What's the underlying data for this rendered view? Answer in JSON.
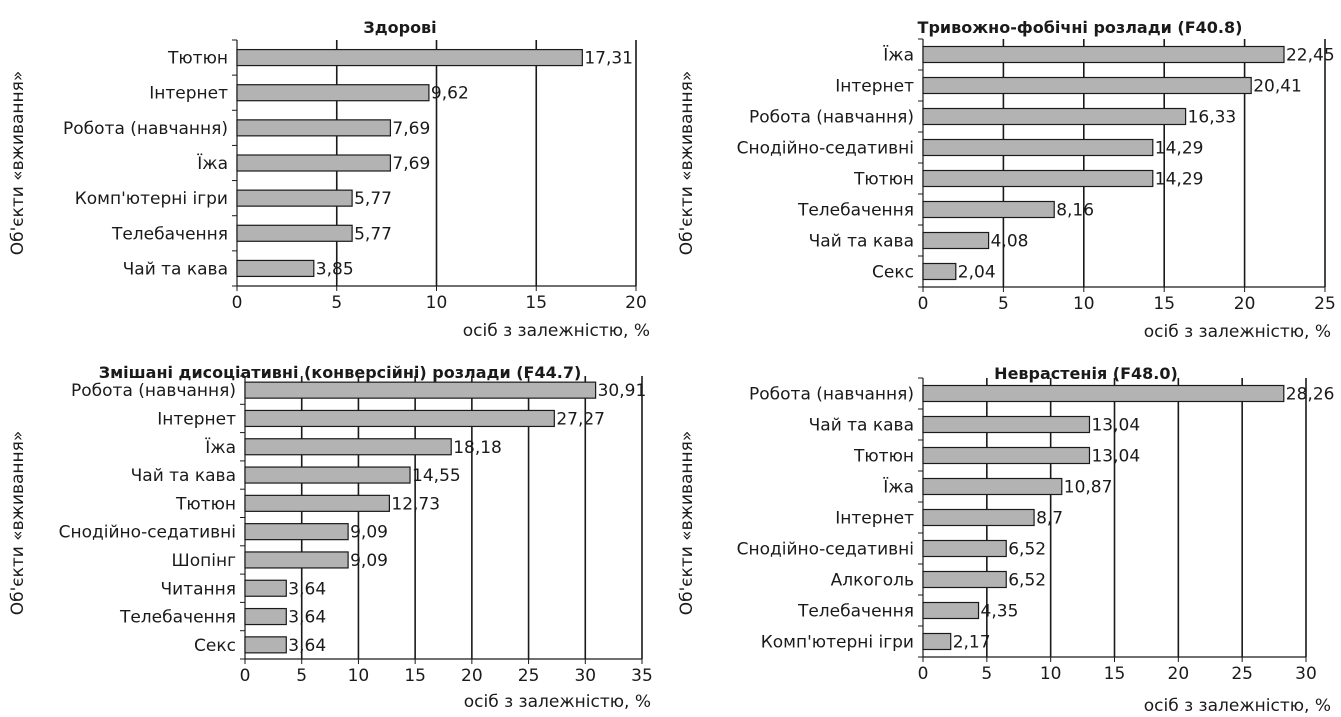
{
  "chart_data": [
    {
      "type": "bar",
      "orientation": "horizontal",
      "title": "Здорові",
      "xlabel": "осіб з залежністю, %",
      "ylabel": "Об'єкти «вживання»",
      "xlim": [
        0,
        20
      ],
      "xticks": [
        "0",
        "5",
        "10",
        "15",
        "20"
      ],
      "grid": "vertical",
      "categories": [
        "Тютюн",
        "Інтернет",
        "Робота (навчання)",
        "Їжа",
        "Комп'ютерні ігри",
        "Телебачення",
        "Чай та кава"
      ],
      "values": [
        17.31,
        9.62,
        7.69,
        7.69,
        5.77,
        5.77,
        3.85
      ],
      "labels": [
        "17,31",
        "9,62",
        "7,69",
        "7,69",
        "5,77",
        "5,77",
        "3,85"
      ]
    },
    {
      "type": "bar",
      "orientation": "horizontal",
      "title": "Тривожно-фобічні розлади (F40.8)",
      "xlabel": "осіб з залежністю, %",
      "ylabel": "Об'єкти «вживання»",
      "xlim": [
        0,
        25
      ],
      "xticks": [
        "0",
        "5",
        "10",
        "15",
        "20",
        "25"
      ],
      "grid": "vertical",
      "categories": [
        "Їжа",
        "Інтернет",
        "Робота (навчання)",
        "Снодійно-седативні",
        "Тютюн",
        "Телебачення",
        "Чай та кава",
        "Секс"
      ],
      "values": [
        22.45,
        20.41,
        16.33,
        14.29,
        14.29,
        8.16,
        4.08,
        2.04
      ],
      "labels": [
        "22,45",
        "20,41",
        "16,33",
        "14,29",
        "14,29",
        "8,16",
        "4,08",
        "2,04"
      ]
    },
    {
      "type": "bar",
      "orientation": "horizontal",
      "title": "Змішані дисоціативні (конверсійні) розлади (F44.7)",
      "xlabel": "осіб з залежністю, %",
      "ylabel": "Об'єкти «вживання»",
      "xlim": [
        0,
        35
      ],
      "xticks": [
        "0",
        "5",
        "10",
        "15",
        "20",
        "25",
        "30",
        "35"
      ],
      "grid": "vertical",
      "categories": [
        "Робота (навчання)",
        "Інтернет",
        "Їжа",
        "Чай та кава",
        "Тютюн",
        "Снодійно-седативні",
        "Шопінг",
        "Читання",
        "Телебачення",
        "Секс"
      ],
      "values": [
        30.91,
        27.27,
        18.18,
        14.55,
        12.73,
        9.09,
        9.09,
        3.64,
        3.64,
        3.64
      ],
      "labels": [
        "30,91",
        "27,27",
        "18,18",
        "14,55",
        "12,73",
        "9,09",
        "9,09",
        "3,64",
        "3,64",
        "3,64"
      ]
    },
    {
      "type": "bar",
      "orientation": "horizontal",
      "title": "Неврастенія (F48.0)",
      "xlabel": "осіб з залежністю, %",
      "ylabel": "Об'єкти «вживання»",
      "xlim": [
        0,
        30
      ],
      "xticks": [
        "0",
        "5",
        "10",
        "15",
        "20",
        "25",
        "30"
      ],
      "grid": "vertical",
      "categories": [
        "Робота (навчання)",
        "Чай та кава",
        "Тютюн",
        "Їжа",
        "Інтернет",
        "Снодійно-седативні",
        "Алкоголь",
        "Телебачення",
        "Комп'ютерні ігри"
      ],
      "values": [
        28.26,
        13.04,
        13.04,
        10.87,
        8.7,
        6.52,
        6.52,
        4.35,
        2.17
      ],
      "labels": [
        "28,26",
        "13,04",
        "13,04",
        "10,87",
        "8,7",
        "6,52",
        "6,52",
        "4,35",
        "2,17"
      ]
    }
  ],
  "colors": {
    "bar_fill": "#b3b3b3",
    "bar_stroke": "#1a1a1a",
    "grid": "#1a1a1a",
    "text": "#1a1a1a"
  }
}
